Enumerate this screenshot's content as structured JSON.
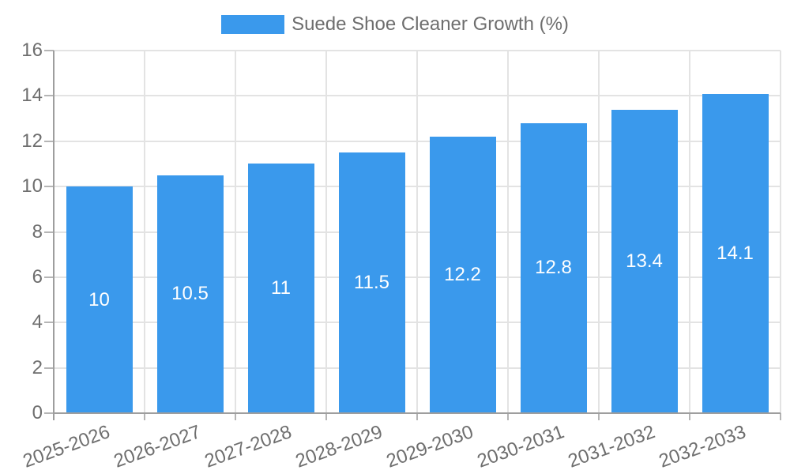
{
  "chart_data": {
    "type": "bar",
    "title": "Suede Shoe Cleaner Growth (%)",
    "legend_label": "Suede Shoe Cleaner Growth (%)",
    "legend_position": "top-center",
    "categories": [
      "2025-2026",
      "2026-2027",
      "2027-2028",
      "2028-2029",
      "2029-2030",
      "2030-2031",
      "2031-2032",
      "2032-2033"
    ],
    "series": [
      {
        "name": "Suede Shoe Cleaner Growth (%)",
        "values": [
          10,
          10.5,
          11,
          11.5,
          12.2,
          12.8,
          13.4,
          14.1
        ]
      }
    ],
    "bar_labels": [
      "10",
      "10.5",
      "11",
      "11.5",
      "12.2",
      "12.8",
      "13.4",
      "14.1"
    ],
    "xlabel": "",
    "ylabel": "",
    "ylim": [
      0,
      16
    ],
    "yticks": [
      0,
      2,
      4,
      6,
      8,
      10,
      12,
      14,
      16
    ],
    "ytick_labels": [
      "0",
      "2",
      "4",
      "6",
      "8",
      "10",
      "12",
      "14",
      "16"
    ],
    "grid": true,
    "colors": {
      "bar": "#3A99EC",
      "grid": "#e3e3e3",
      "axis": "#9e9e9e",
      "tick": "#b5b5b5",
      "text": "#6e6e6e",
      "bar_label": "#ffffff",
      "background": "#ffffff"
    }
  }
}
